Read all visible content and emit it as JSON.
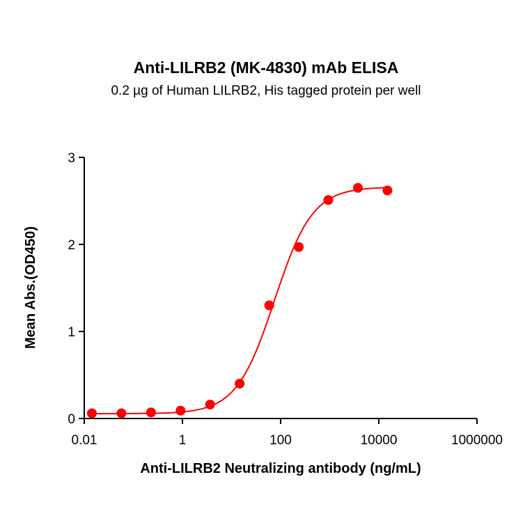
{
  "chart_data": {
    "type": "scatter",
    "title": "Anti-LILRB2 (MK-4830) mAb ELISA",
    "subtitle": "0.2 µg of Human LILRB2, His tagged protein per well",
    "xlabel": "Anti-LILRB2 Neutralizing antibody (ng/mL)",
    "ylabel": "Mean Abs.(OD450)",
    "xscale": "log",
    "xlim": [
      0.01,
      1000000
    ],
    "ylim": [
      0,
      3
    ],
    "xticks": [
      "0.01",
      "1",
      "100",
      "10000",
      "1000000"
    ],
    "yticks": [
      "0",
      "1",
      "2",
      "3"
    ],
    "grid": false,
    "color": "#ff0000",
    "fit_curve": "4PL sigmoidal",
    "x": [
      0.0143,
      0.0572,
      0.229,
      0.916,
      3.66,
      14.6,
      58.6,
      234,
      938,
      3750,
      15000
    ],
    "values": [
      0.06,
      0.06,
      0.07,
      0.09,
      0.16,
      0.4,
      1.3,
      1.97,
      2.51,
      2.65,
      2.62
    ]
  }
}
